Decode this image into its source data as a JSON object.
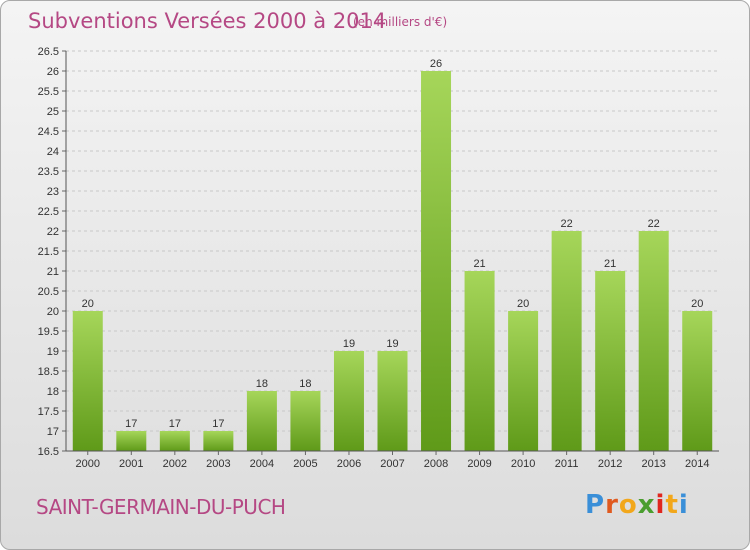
{
  "title": "Subventions Versées 2000 à 2014",
  "unit_note": "(en milliers d'€)",
  "commune": "SAINT-GERMAIN-DU-PUCH",
  "logo": {
    "letters": [
      "P",
      "r",
      "o",
      "x",
      "i",
      "t",
      "i"
    ],
    "colors": [
      "#3a8fd8",
      "#e05a1f",
      "#f2a71b",
      "#4a9e2f",
      "#e0261f",
      "#f2a71b",
      "#3a8fd8"
    ]
  },
  "colors": {
    "bar_top": "#a6d65a",
    "bar_bottom": "#5f9a19",
    "accent": "#b54884"
  },
  "chart_data": {
    "type": "bar",
    "title": "Subventions Versées 2000 à 2014",
    "categories": [
      "2000",
      "2001",
      "2002",
      "2003",
      "2004",
      "2005",
      "2006",
      "2007",
      "2008",
      "2009",
      "2010",
      "2011",
      "2012",
      "2013",
      "2014"
    ],
    "values": [
      20,
      17,
      17,
      17,
      18,
      18,
      19,
      19,
      26,
      21,
      20,
      22,
      21,
      22,
      20
    ],
    "ylim": [
      16.5,
      26.5
    ],
    "yticks": [
      "16.5",
      "17",
      "17.5",
      "18",
      "18.5",
      "19",
      "19.5",
      "20",
      "20.5",
      "21",
      "21.5",
      "22",
      "22.5",
      "23",
      "23.5",
      "24",
      "24.5",
      "25",
      "25.5",
      "26",
      "26.5"
    ],
    "grid": true,
    "xlabel": "",
    "ylabel": ""
  }
}
